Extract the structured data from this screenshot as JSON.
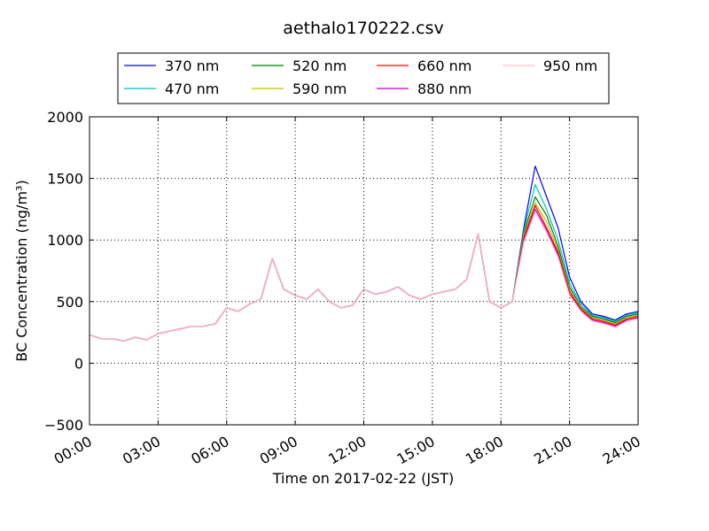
{
  "chart_data": {
    "type": "line",
    "title": "aethalo170222.csv",
    "xlabel": "Time on 2017-02-22 (JST)",
    "ylabel": "BC Concentration (ng/m³)",
    "xlim": [
      0,
      24
    ],
    "ylim": [
      -500,
      2000
    ],
    "x_ticks": [
      0,
      3,
      6,
      9,
      12,
      15,
      18,
      21,
      24
    ],
    "x_tick_labels": [
      "00:00",
      "03:00",
      "06:00",
      "09:00",
      "12:00",
      "15:00",
      "18:00",
      "21:00",
      "24:00"
    ],
    "y_ticks": [
      -500,
      0,
      500,
      1000,
      1500,
      2000
    ],
    "y_tick_labels": [
      "−500",
      "0",
      "500",
      "1000",
      "1500",
      "2000"
    ],
    "grid": true,
    "legend_position": "top, above the plot",
    "x": [
      0,
      0.5,
      1,
      1.5,
      2,
      2.5,
      3,
      3.5,
      4,
      4.5,
      5,
      5.5,
      6,
      6.5,
      7,
      7.5,
      8,
      8.5,
      9,
      9.5,
      10,
      10.5,
      11,
      11.5,
      12,
      12.5,
      13,
      13.5,
      14,
      14.5,
      15,
      15.5,
      16,
      16.5,
      17,
      17.5,
      18,
      18.5,
      19,
      19.5,
      20,
      20.5,
      21,
      21.5,
      22,
      22.5,
      23,
      23.5,
      24
    ],
    "series": [
      {
        "name": "370 nm",
        "color": "#0000ff",
        "values": [
          230,
          200,
          200,
          180,
          210,
          190,
          240,
          260,
          280,
          300,
          300,
          320,
          450,
          420,
          480,
          520,
          850,
          600,
          550,
          520,
          600,
          500,
          450,
          470,
          600,
          560,
          580,
          620,
          550,
          520,
          560,
          580,
          600,
          680,
          1050,
          500,
          450,
          500,
          1100,
          1600,
          1350,
          1100,
          700,
          500,
          400,
          380,
          350,
          400,
          420
        ]
      },
      {
        "name": "470 nm",
        "color": "#00bfbf",
        "values": [
          230,
          200,
          200,
          180,
          210,
          190,
          240,
          260,
          280,
          300,
          300,
          320,
          450,
          420,
          480,
          520,
          850,
          600,
          550,
          520,
          600,
          500,
          450,
          470,
          600,
          560,
          580,
          620,
          550,
          520,
          560,
          580,
          600,
          680,
          1050,
          500,
          450,
          500,
          1080,
          1450,
          1250,
          1000,
          650,
          480,
          390,
          370,
          340,
          390,
          410
        ]
      },
      {
        "name": "520 nm",
        "color": "#008000",
        "values": [
          230,
          200,
          200,
          180,
          210,
          190,
          240,
          260,
          280,
          300,
          300,
          320,
          450,
          420,
          480,
          520,
          850,
          600,
          550,
          520,
          600,
          500,
          450,
          470,
          600,
          560,
          580,
          620,
          550,
          520,
          560,
          580,
          600,
          680,
          1050,
          500,
          450,
          500,
          1060,
          1350,
          1200,
          950,
          620,
          460,
          380,
          360,
          330,
          380,
          400
        ]
      },
      {
        "name": "590 nm",
        "color": "#bfbf00",
        "values": [
          230,
          200,
          200,
          180,
          210,
          190,
          240,
          260,
          280,
          300,
          300,
          320,
          450,
          420,
          480,
          520,
          850,
          600,
          550,
          520,
          600,
          500,
          450,
          470,
          600,
          560,
          580,
          620,
          550,
          520,
          560,
          580,
          600,
          680,
          1050,
          500,
          450,
          500,
          1040,
          1300,
          1150,
          920,
          600,
          450,
          370,
          350,
          320,
          370,
          390
        ]
      },
      {
        "name": "660 nm",
        "color": "#ff0000",
        "values": [
          230,
          200,
          200,
          180,
          210,
          190,
          240,
          260,
          280,
          300,
          300,
          320,
          450,
          420,
          480,
          520,
          850,
          600,
          550,
          520,
          600,
          500,
          450,
          470,
          600,
          560,
          580,
          620,
          550,
          520,
          560,
          580,
          600,
          680,
          1050,
          500,
          450,
          500,
          1020,
          1280,
          1100,
          900,
          580,
          440,
          360,
          340,
          310,
          360,
          380
        ]
      },
      {
        "name": "880 nm",
        "color": "#bf00bf",
        "values": [
          230,
          200,
          200,
          180,
          210,
          190,
          240,
          260,
          280,
          300,
          300,
          320,
          450,
          420,
          480,
          520,
          850,
          600,
          550,
          520,
          600,
          500,
          450,
          470,
          600,
          560,
          580,
          620,
          550,
          520,
          560,
          580,
          600,
          680,
          1050,
          500,
          450,
          500,
          1000,
          1250,
          1080,
          880,
          560,
          430,
          350,
          330,
          300,
          350,
          370
        ]
      },
      {
        "name": "950 nm",
        "color": "#ffc0cb",
        "values": [
          230,
          200,
          200,
          180,
          210,
          190,
          240,
          260,
          280,
          300,
          300,
          320,
          450,
          420,
          480,
          520,
          850,
          600,
          550,
          520,
          600,
          500,
          450,
          470,
          600,
          560,
          580,
          620,
          550,
          520,
          560,
          580,
          600,
          680,
          1050,
          500,
          450,
          500,
          980,
          1230,
          1060,
          860,
          550,
          420,
          340,
          320,
          290,
          340,
          360
        ]
      }
    ]
  }
}
